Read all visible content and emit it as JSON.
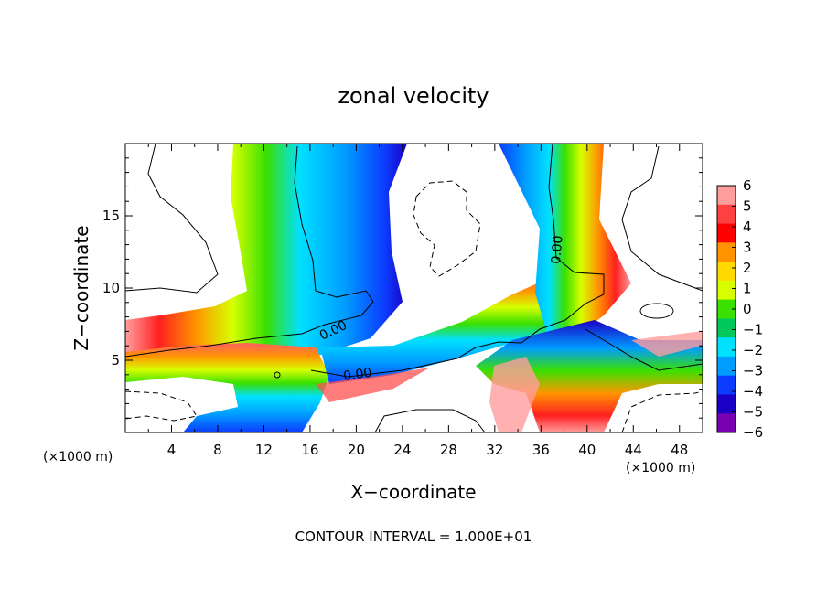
{
  "chart_data": {
    "type": "heatmap",
    "title": "zonal velocity",
    "xlabel": "X−coordinate",
    "ylabel": "Z−coordinate",
    "x_unit_label": "(×1000 m)",
    "y_unit_label": "(×1000 m)",
    "xlim": [
      0,
      50
    ],
    "ylim": [
      0,
      20
    ],
    "x_ticks": [
      4,
      8,
      12,
      16,
      20,
      24,
      28,
      32,
      36,
      40,
      44,
      48
    ],
    "y_ticks": [
      5,
      10,
      15
    ],
    "colorbar": {
      "ticks": [
        "6",
        "5",
        "4",
        "3",
        "2",
        "1",
        "0",
        "−1",
        "−2",
        "−3",
        "−4",
        "−5",
        "−6"
      ],
      "colors": [
        "#ff9d9d",
        "#ff4040",
        "#ff0000",
        "#ff9400",
        "#ffd900",
        "#d7ff00",
        "#3ae000",
        "#00c85a",
        "#00e0ff",
        "#009cff",
        "#0c3cff",
        "#1a00c4",
        "#7a00b4"
      ]
    },
    "contour_labels": [
      "0.00",
      "0.00",
      "0.00"
    ],
    "footnote": "CONTOUR INTERVAL = 1.000E+01"
  }
}
